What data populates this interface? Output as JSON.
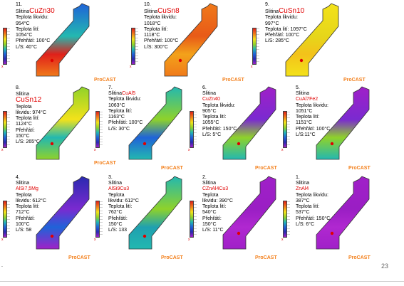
{
  "slide": {
    "page_number": "23",
    "brand": "ProCAST",
    "bullet": "."
  },
  "panels": [
    {
      "id": "p11",
      "number": "11.",
      "label": "Slitina",
      "alloy": "CuZn30",
      "lines": [
        "Teplota likvidu:",
        "954°C",
        "Teplota lití:",
        "1054°C",
        "Přehřátí: 100°C",
        "L/S: 40°C"
      ],
      "fill": "blue-red"
    },
    {
      "id": "p10",
      "number": "10.",
      "label": "Slitina",
      "alloy": "CuSn8",
      "lines": [
        "Teplota likvidu:",
        "1018°C",
        "Teplota lití:",
        "1118°C",
        "Přehřátí: 100°C",
        "L/S: 300°C"
      ],
      "fill": "orange"
    },
    {
      "id": "p9",
      "number": "9.",
      "label": "Slitina",
      "alloy": "CuSn10",
      "lines": [
        "Teplota likvidu:",
        "997°C",
        "Teplota lití: 1097°C",
        "Přehřátí: 100°C",
        "L/S: 285°C"
      ],
      "fill": "yellow"
    },
    {
      "id": "p8",
      "number": "8.",
      "label": "Slitina",
      "alloy": "CuSn12",
      "lines": [
        "Teplota",
        "likvidu: 974°C",
        "Teplota lití:",
        "1124°C",
        "Přehřátí:",
        "150°C",
        "L/S: 265°C"
      ],
      "fill": "green-yellow"
    },
    {
      "id": "p7",
      "number": "7.",
      "label": "Slitina",
      "alloy": "CuAl5",
      "lines": [
        "Teplota likvidu:",
        "1063°C",
        "Teplota lití:",
        "1163°C",
        "Přehřátí: 100°C",
        "L/S: 30°C"
      ],
      "fill": "green-blue"
    },
    {
      "id": "p6",
      "number": "6.",
      "label": "Slitina",
      "alloy": "CuZn40",
      "lines": [
        "Teplota likvidu:",
        "905°C",
        "Teplota lití:",
        "1055°C",
        "Přehřátí: 150°C",
        "L/S: 5°C"
      ],
      "fill": "purple-green"
    },
    {
      "id": "p5",
      "number": "5.",
      "label": "Slitina",
      "alloy": "CuAl7Fe2",
      "lines": [
        "Teplota likvidu:",
        "1051°C",
        "Teplota lití:",
        "1151°C",
        "Přehřátí: 100°C",
        "L/S:11°C"
      ],
      "fill": "purple-green"
    },
    {
      "id": "p4",
      "number": "4.",
      "label": "Slitina",
      "alloy": "AlSi7,5Mg",
      "lines": [
        "Teplota",
        "likvidu: 612°C",
        "Teplota lití:",
        "712°C",
        "Přehřátí:",
        "100°C",
        "L/S: 58"
      ],
      "fill": "blue-purple"
    },
    {
      "id": "p3",
      "number": "3.",
      "label": "Slitina",
      "alloy": "AlSi9Cu3",
      "lines": [
        "Teplota",
        "likvidu: 612°C",
        "Teplota lití:",
        "762°C",
        "Přehřátí:",
        "150°C",
        "L/S: 133"
      ],
      "fill": "teal"
    },
    {
      "id": "p2",
      "number": "2.",
      "label": "Slitina",
      "alloy": "CZnAl4Cu3",
      "lines": [
        "Teplota",
        "likvidu: 390°C",
        "Teplota lití:",
        "540°C",
        "Přehřátí:",
        "150°C",
        "L/S: 11°C"
      ],
      "fill": "purple"
    },
    {
      "id": "p1",
      "number": "1.",
      "label": "Slitina",
      "alloy": "ZnAl4",
      "lines": [
        "Teplota likvidu:",
        "387°C",
        "Teplota lití:",
        "537°C",
        "Přehřátí: 150°C",
        "L/S: 6°C"
      ],
      "fill": "purple"
    }
  ]
}
